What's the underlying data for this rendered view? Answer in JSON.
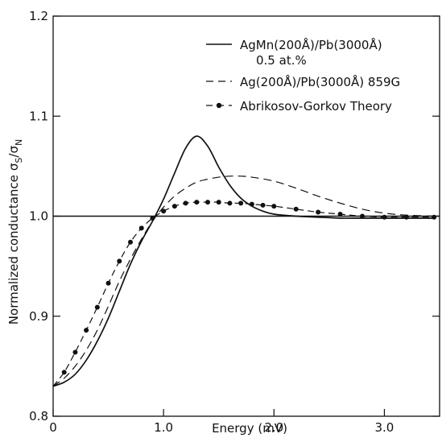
{
  "chart_data": {
    "type": "line",
    "title": "",
    "xlabel": "Energy (mV)",
    "ylabel": "Normalized conductance σS/σN",
    "ylabel_main": "Normalized conductance",
    "ylabel_symbol": "σ",
    "ylabel_sub1": "S",
    "ylabel_slash": "/",
    "ylabel_sub2": "N",
    "xlim": [
      0,
      3.5
    ],
    "ylim": [
      0.8,
      1.2
    ],
    "x_ticks": [
      {
        "value": 0,
        "label": "0"
      },
      {
        "value": 1.0,
        "label": "1.0"
      },
      {
        "value": 2.0,
        "label": "2.0"
      },
      {
        "value": 3.0,
        "label": "3.0"
      }
    ],
    "y_ticks": [
      {
        "value": 0.8,
        "label": "0.8"
      },
      {
        "value": 0.9,
        "label": "0.9"
      },
      {
        "value": 1.0,
        "label": "1.0"
      },
      {
        "value": 1.1,
        "label": "1.1"
      },
      {
        "value": 1.2,
        "label": "1.2"
      }
    ],
    "reference_line": {
      "y": 1.0
    },
    "grid": false,
    "legend_position": "top-right",
    "series": [
      {
        "name": "AgMn(200Å)/Pb(3000Å)",
        "name_line2": "0.5 at.%",
        "style": "solid",
        "x": [
          0,
          0.1,
          0.2,
          0.3,
          0.4,
          0.5,
          0.6,
          0.7,
          0.8,
          0.9,
          1.0,
          1.1,
          1.2,
          1.3,
          1.4,
          1.5,
          1.6,
          1.7,
          1.8,
          1.9,
          2.0,
          2.2,
          2.4,
          2.6,
          2.8,
          3.0,
          3.2,
          3.45
        ],
        "y": [
          0.83,
          0.834,
          0.842,
          0.856,
          0.875,
          0.898,
          0.925,
          0.952,
          0.975,
          0.995,
          1.017,
          1.043,
          1.068,
          1.08,
          1.07,
          1.049,
          1.031,
          1.018,
          1.01,
          1.005,
          1.002,
          1.0,
          0.999,
          0.998,
          0.998,
          0.998,
          0.998,
          0.998
        ]
      },
      {
        "name": "Ag(200Å)/Pb(3000Å) 859G",
        "style": "dashed",
        "x": [
          0,
          0.1,
          0.2,
          0.3,
          0.4,
          0.5,
          0.6,
          0.7,
          0.8,
          0.9,
          1.0,
          1.1,
          1.2,
          1.3,
          1.4,
          1.5,
          1.6,
          1.7,
          1.8,
          2.0,
          2.2,
          2.4,
          2.6,
          2.8,
          3.0,
          3.2,
          3.45
        ],
        "y": [
          0.83,
          0.838,
          0.85,
          0.866,
          0.886,
          0.91,
          0.935,
          0.957,
          0.977,
          0.995,
          1.009,
          1.02,
          1.028,
          1.034,
          1.037,
          1.039,
          1.04,
          1.04,
          1.039,
          1.035,
          1.028,
          1.02,
          1.013,
          1.007,
          1.003,
          1.001,
          1.0
        ]
      },
      {
        "name": "Abrikosov-Gorkov Theory",
        "style": "dash-dot-marker",
        "x": [
          0,
          0.1,
          0.2,
          0.3,
          0.4,
          0.5,
          0.6,
          0.7,
          0.8,
          0.9,
          1.0,
          1.1,
          1.2,
          1.3,
          1.4,
          1.5,
          1.6,
          1.7,
          1.8,
          1.9,
          2.0,
          2.2,
          2.4,
          2.6,
          2.8,
          3.0,
          3.2,
          3.45
        ],
        "y": [
          0.83,
          0.844,
          0.864,
          0.886,
          0.909,
          0.933,
          0.955,
          0.974,
          0.988,
          0.998,
          1.005,
          1.01,
          1.013,
          1.014,
          1.014,
          1.014,
          1.013,
          1.013,
          1.012,
          1.011,
          1.01,
          1.007,
          1.004,
          1.002,
          1.0,
          0.999,
          0.999,
          0.999
        ]
      }
    ]
  }
}
